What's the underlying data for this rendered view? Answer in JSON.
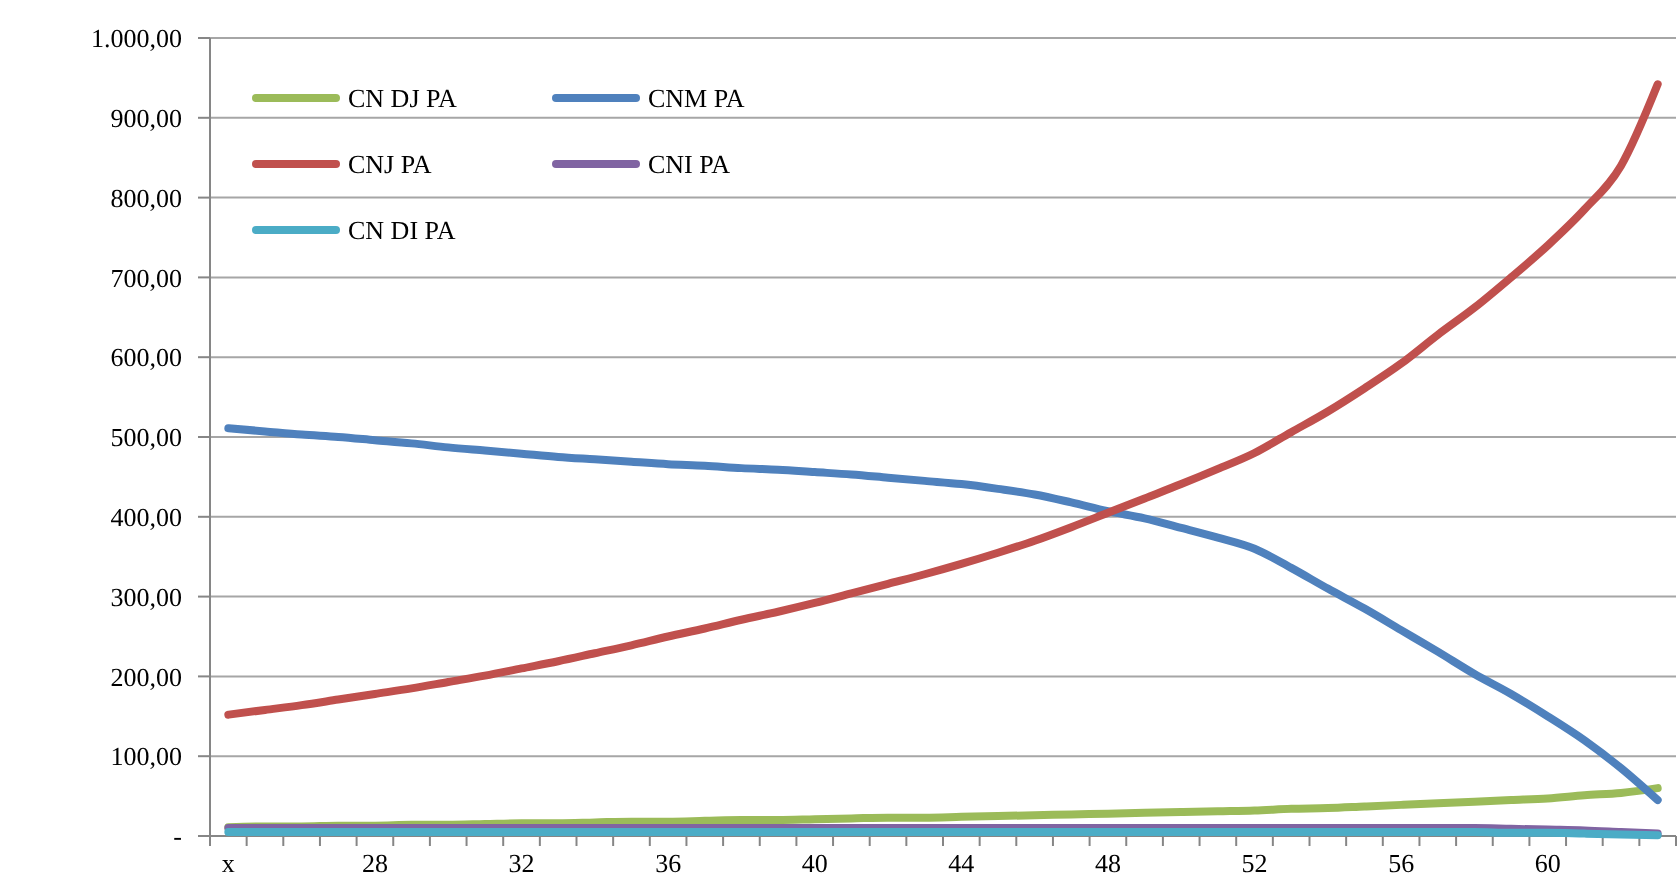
{
  "chart_data": {
    "type": "line",
    "categories": [
      "x",
      null,
      null,
      null,
      "28",
      null,
      null,
      null,
      "32",
      null,
      null,
      null,
      "36",
      null,
      null,
      null,
      "40",
      null,
      null,
      null,
      "44",
      null,
      null,
      null,
      "48",
      null,
      null,
      null,
      "52",
      null,
      null,
      null,
      "56",
      null,
      null,
      null,
      "60",
      null,
      null,
      null
    ],
    "series": [
      {
        "name": "CN DJ PA",
        "color": "#9bbb59",
        "values": [
          11,
          12,
          12,
          13,
          13,
          14,
          14,
          15,
          16,
          16,
          17,
          18,
          18,
          19,
          20,
          20,
          21,
          22,
          23,
          23,
          24,
          25,
          26,
          27,
          28,
          29,
          30,
          31,
          32,
          34,
          35,
          37,
          39,
          41,
          43,
          45,
          47,
          51,
          54,
          60
        ]
      },
      {
        "name": "CNM PA",
        "color": "#4f81bd",
        "values": [
          511,
          507,
          503,
          500,
          496,
          492,
          487,
          483,
          479,
          475,
          472,
          469,
          466,
          464,
          461,
          459,
          456,
          453,
          449,
          445,
          441,
          435,
          428,
          418,
          407,
          398,
          386,
          374,
          360,
          336,
          310,
          285,
          258,
          231,
          203,
          178,
          150,
          120,
          85,
          45
        ]
      },
      {
        "name": "CNJ PA",
        "color": "#c0504d",
        "values": [
          152,
          158,
          164,
          171,
          178,
          185,
          193,
          201,
          210,
          219,
          229,
          239,
          250,
          260,
          271,
          281,
          292,
          304,
          316,
          328,
          341,
          355,
          370,
          387,
          405,
          423,
          441,
          460,
          480,
          506,
          532,
          561,
          592,
          628,
          662,
          700,
          740,
          785,
          840,
          942
        ]
      },
      {
        "name": "CNI PA",
        "color": "#8064a2",
        "values": [
          10,
          10,
          10,
          10,
          10,
          10,
          10,
          10,
          10,
          10,
          10,
          10,
          10,
          10,
          10,
          10,
          10,
          10,
          10,
          10,
          10,
          10,
          10,
          10,
          10,
          10,
          10,
          10,
          10,
          10,
          10,
          10,
          10,
          10,
          10,
          9,
          8,
          7,
          5,
          3
        ]
      },
      {
        "name": "CN DI PA",
        "color": "#4bacc6",
        "values": [
          5,
          5,
          5,
          5,
          5,
          5,
          5,
          5,
          5,
          5,
          5,
          5,
          5,
          5,
          5,
          5,
          5,
          5,
          5,
          5,
          5,
          5,
          5,
          5,
          5,
          5,
          5,
          5,
          5,
          5,
          5,
          5,
          5,
          5,
          5,
          4,
          4,
          3,
          2,
          1
        ]
      }
    ],
    "ylim": [
      0,
      1000
    ],
    "yticks": [
      {
        "value": 0,
        "label": "-"
      },
      {
        "value": 100,
        "label": "100,00"
      },
      {
        "value": 200,
        "label": "200,00"
      },
      {
        "value": 300,
        "label": "300,00"
      },
      {
        "value": 400,
        "label": "400,00"
      },
      {
        "value": 500,
        "label": "500,00"
      },
      {
        "value": 600,
        "label": "600,00"
      },
      {
        "value": 700,
        "label": "700,00"
      },
      {
        "value": 800,
        "label": "800,00"
      },
      {
        "value": 900,
        "label": "900,00"
      },
      {
        "value": 1000,
        "label": "1.000,00"
      }
    ],
    "grid": "y",
    "legend": "top left",
    "marker": "none",
    "line_style": "solid"
  }
}
